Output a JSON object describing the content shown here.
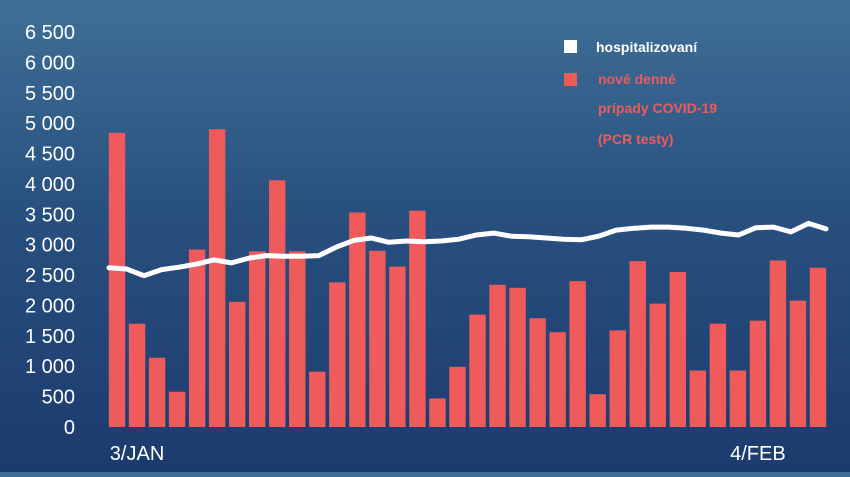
{
  "chart_data": {
    "type": "bar",
    "y_ticks": [
      "0",
      "500",
      "1 000",
      "1 500",
      "2 000",
      "2 500",
      "3 000",
      "3 500",
      "4 000",
      "4 500",
      "5 000",
      "5 500",
      "6 000",
      "6 500"
    ],
    "x_tick_labels": [
      {
        "label": "3/JAN",
        "index": 1
      },
      {
        "label": "4/FEB",
        "index": 32
      }
    ],
    "ylim": [
      0,
      6500
    ],
    "grid": false,
    "legend_placement": "top-right",
    "series": [
      {
        "name": "hospitalizovaní",
        "kind": "line",
        "color": "#ffffff",
        "values": [
          2620,
          2600,
          2490,
          2590,
          2630,
          2680,
          2750,
          2700,
          2780,
          2820,
          2810,
          2810,
          2820,
          2960,
          3070,
          3110,
          3040,
          3060,
          3050,
          3060,
          3090,
          3160,
          3190,
          3140,
          3130,
          3110,
          3090,
          3080,
          3140,
          3240,
          3270,
          3290,
          3290,
          3270,
          3240,
          3190,
          3160,
          3280,
          3290,
          3210,
          3350,
          3260
        ]
      },
      {
        "name": "nové denné prípady COVID-19 (PCR testy)",
        "name_lines": [
          "nové denné",
          "prípady COVID-19",
          "(PCR testy)"
        ],
        "kind": "bar",
        "color": "#ef5b5b",
        "values": [
          4840,
          1700,
          1140,
          580,
          2920,
          4900,
          2060,
          2890,
          4060,
          2890,
          910,
          2380,
          3530,
          2900,
          2640,
          3560,
          470,
          990,
          1850,
          2340,
          2290,
          1790,
          1560,
          2400,
          540,
          1590,
          2730,
          2030,
          2550,
          930,
          1700,
          930,
          1750,
          2740,
          2080,
          2620
        ]
      }
    ]
  }
}
